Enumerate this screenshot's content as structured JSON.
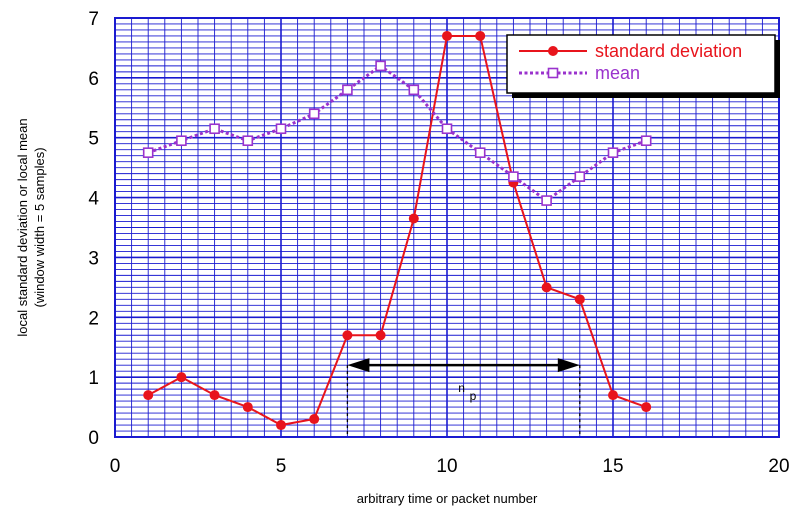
{
  "chart_data": {
    "type": "line",
    "xlabel": "arbitrary time or packet number",
    "ylabel_line1": "local standard deviation or local mean",
    "ylabel_line2": "(window width = 5 samples)",
    "xlim": [
      0,
      20
    ],
    "ylim": [
      0,
      7
    ],
    "xticks": [
      "0",
      "5",
      "10",
      "15",
      "20"
    ],
    "yticks": [
      "0",
      "1",
      "2",
      "3",
      "4",
      "5",
      "6",
      "7"
    ],
    "grid": true,
    "legend_position": "top-right",
    "series": [
      {
        "name": "standard deviation",
        "color": "#e8141c",
        "marker": "filled-circle",
        "x": [
          1,
          2,
          3,
          4,
          5,
          6,
          7,
          8,
          9,
          10,
          11,
          12,
          13,
          14,
          15,
          16
        ],
        "y": [
          0.7,
          1.0,
          0.7,
          0.5,
          0.2,
          0.3,
          1.7,
          1.7,
          3.65,
          6.7,
          6.7,
          4.25,
          2.5,
          2.3,
          0.7,
          0.5
        ]
      },
      {
        "name": "mean",
        "color": "#9a32cd",
        "marker": "open-square",
        "x": [
          1,
          2,
          3,
          4,
          5,
          6,
          7,
          8,
          9,
          10,
          11,
          12,
          13,
          14,
          15,
          16
        ],
        "y": [
          4.75,
          4.95,
          5.15,
          4.95,
          5.15,
          5.4,
          5.8,
          6.2,
          5.8,
          5.15,
          4.75,
          4.35,
          3.95,
          4.35,
          4.75,
          4.95
        ]
      }
    ],
    "annotation": {
      "label": "n",
      "subscript": "p",
      "x_start": 7,
      "x_end": 14,
      "y": 1.2
    }
  }
}
